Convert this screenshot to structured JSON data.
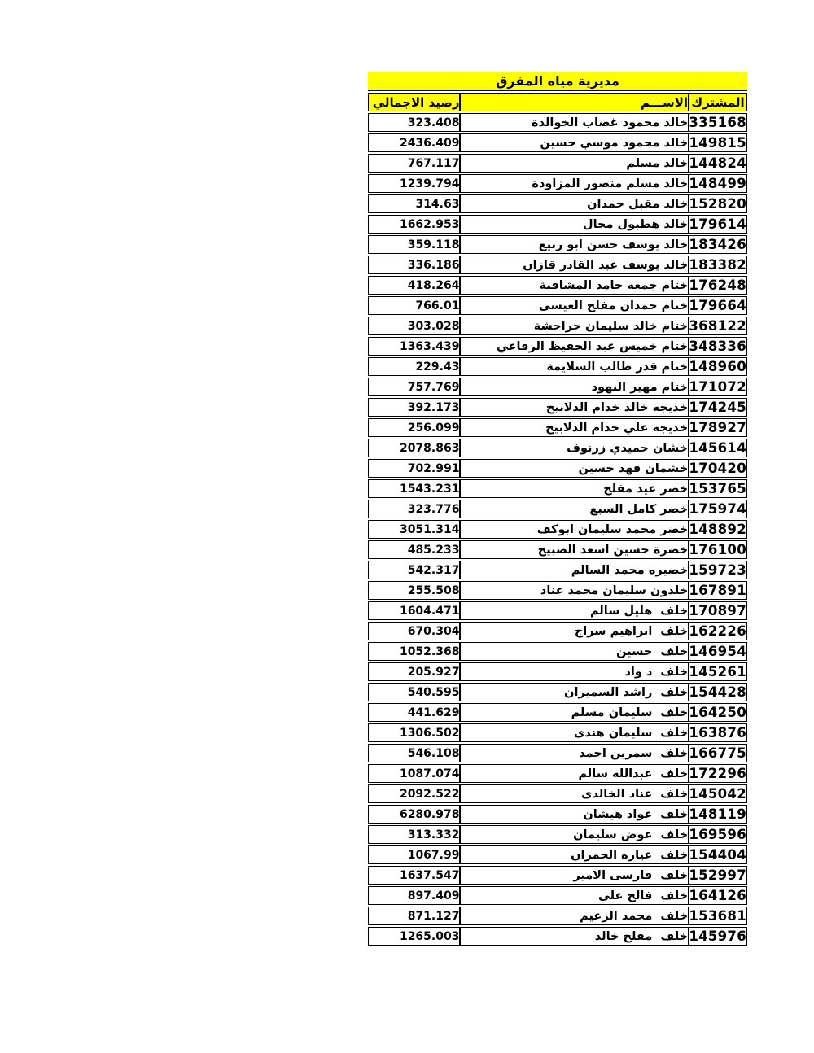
{
  "title": "مديرية مياه المفرق",
  "columns": {
    "subscriber": "المشترك",
    "name": "الاســـم",
    "balance": "رصيد الاجمالي"
  },
  "colors": {
    "header_bg": "#FFFF00",
    "border": "#000000",
    "text": "#000000",
    "page_bg": "#FFFFFF"
  },
  "rows": [
    {
      "subscriber": "335168",
      "name": "خالد محمود غصاب الخوالدة",
      "balance": "323.408"
    },
    {
      "subscriber": "149815",
      "name": "خالد محمود موسي حسين",
      "balance": "2436.409"
    },
    {
      "subscriber": "144824",
      "name": "خالد مسلم",
      "balance": "767.117"
    },
    {
      "subscriber": "148499",
      "name": "خالد مسلم منصور المزاودة",
      "balance": "1239.794"
    },
    {
      "subscriber": "152820",
      "name": "خالد مقبل حمدان",
      "balance": "314.63"
    },
    {
      "subscriber": "179614",
      "name": "خالد هطبول محال",
      "balance": "1662.953"
    },
    {
      "subscriber": "183426",
      "name": "خالد يوسف حسن ابو ربيع",
      "balance": "359.118"
    },
    {
      "subscriber": "183382",
      "name": "خالد يوسف عبد القادر قازان",
      "balance": "336.186"
    },
    {
      "subscriber": "176248",
      "name": "ختام جمعه حامد المشاقبة",
      "balance": "418.264"
    },
    {
      "subscriber": "179664",
      "name": "ختام حمدان مفلح العيسى",
      "balance": "766.01"
    },
    {
      "subscriber": "368122",
      "name": "ختام خالد سليمان حراحشة",
      "balance": "303.028"
    },
    {
      "subscriber": "348336",
      "name": "ختام خميس عبد الحفيظ الرفاعي",
      "balance": "1363.439"
    },
    {
      "subscriber": "148960",
      "name": "ختام قدر طالب السلايمة",
      "balance": "229.43"
    },
    {
      "subscriber": "171072",
      "name": "ختام مهير النهود",
      "balance": "757.769"
    },
    {
      "subscriber": "174245",
      "name": "خديجه خالد خدام الدلابيح",
      "balance": "392.173"
    },
    {
      "subscriber": "178927",
      "name": "خديجه علي خدام الدلابيح",
      "balance": "256.099"
    },
    {
      "subscriber": "145614",
      "name": "خشان حميدي زرنوف",
      "balance": "2078.863"
    },
    {
      "subscriber": "170420",
      "name": "خشمان فهد حسين",
      "balance": "702.991"
    },
    {
      "subscriber": "153765",
      "name": "خضر عيد مفلح",
      "balance": "1543.231"
    },
    {
      "subscriber": "175974",
      "name": "خضر كامل السبع",
      "balance": "323.776"
    },
    {
      "subscriber": "148892",
      "name": "خضر محمد سليمان ابوكف",
      "balance": "3051.314"
    },
    {
      "subscriber": "176100",
      "name": "خضرة حسين اسعد الصبيح",
      "balance": "485.233"
    },
    {
      "subscriber": "159723",
      "name": "خضيره محمد السالم",
      "balance": "542.317"
    },
    {
      "subscriber": "167891",
      "name": "خلدون سليمان محمد عناد",
      "balance": "255.508"
    },
    {
      "subscriber": "170897",
      "name": "خلف  هليل سالم",
      "balance": "1604.471"
    },
    {
      "subscriber": "162226",
      "name": "خلف  ابراهيم سراج",
      "balance": "670.304"
    },
    {
      "subscriber": "146954",
      "name": "خلف  حسين",
      "balance": "1052.368"
    },
    {
      "subscriber": "145261",
      "name": "خلف  د واد",
      "balance": "205.927"
    },
    {
      "subscriber": "154428",
      "name": "خلف  راشد السميران",
      "balance": "540.595"
    },
    {
      "subscriber": "164250",
      "name": "خلف  سليمان مسلم",
      "balance": "441.629"
    },
    {
      "subscriber": "163876",
      "name": "خلف  سليمان هندى",
      "balance": "1306.502"
    },
    {
      "subscriber": "166775",
      "name": "خلف  سمرين احمد",
      "balance": "546.108"
    },
    {
      "subscriber": "172296",
      "name": "خلف  عبدالله سالم",
      "balance": "1087.074"
    },
    {
      "subscriber": "145042",
      "name": "خلف  عناد الخالدى",
      "balance": "2092.522"
    },
    {
      "subscriber": "148119",
      "name": "خلف  عواد هيشان",
      "balance": "6280.978"
    },
    {
      "subscriber": "169596",
      "name": "خلف  عوض سليمان",
      "balance": "313.332"
    },
    {
      "subscriber": "154404",
      "name": "خلف  عياره الحمران",
      "balance": "1067.99"
    },
    {
      "subscriber": "152997",
      "name": "خلف  فارسى الامير",
      "balance": "1637.547"
    },
    {
      "subscriber": "164126",
      "name": "خلف  فالح على",
      "balance": "897.409"
    },
    {
      "subscriber": "153681",
      "name": "خلف  محمد الزعيم",
      "balance": "871.127"
    },
    {
      "subscriber": "145976",
      "name": "خلف  مفلح خالد",
      "balance": "1265.003"
    }
  ]
}
